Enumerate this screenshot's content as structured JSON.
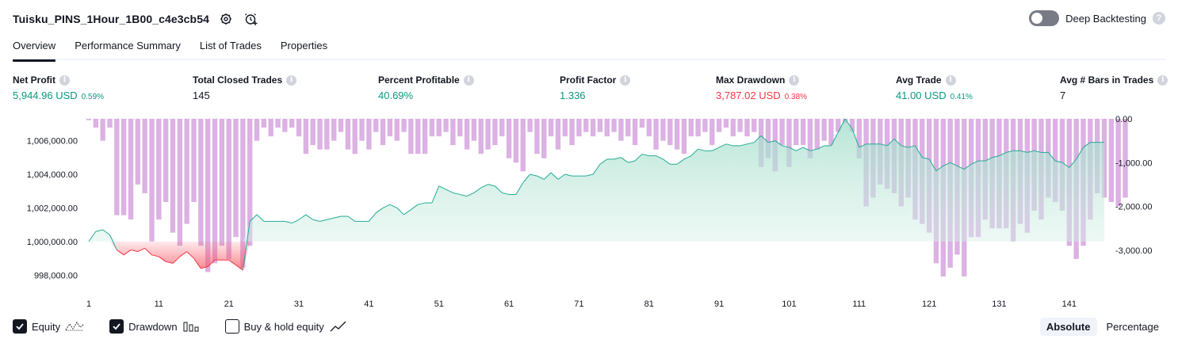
{
  "header": {
    "strategy_name": "Tuisku_PINS_1Hour_1B00_c4e3cb54",
    "settings_icon": "gear-icon",
    "alert_icon": "alarm-clock-add-icon",
    "deep_backtesting_label": "Deep Backtesting",
    "deep_backtesting_enabled": false
  },
  "tabs": [
    {
      "label": "Overview",
      "active": true
    },
    {
      "label": "Performance Summary",
      "active": false
    },
    {
      "label": "List of Trades",
      "active": false
    },
    {
      "label": "Properties",
      "active": false
    }
  ],
  "metrics": [
    {
      "label": "Net Profit",
      "value": "5,944.96 USD",
      "pct": "0.59%",
      "tone": "pos"
    },
    {
      "label": "Total Closed Trades",
      "value": "145",
      "pct": "",
      "tone": "neutral"
    },
    {
      "label": "Percent Profitable",
      "value": "40.69%",
      "pct": "",
      "tone": "pos"
    },
    {
      "label": "Profit Factor",
      "value": "1.336",
      "pct": "",
      "tone": "pos"
    },
    {
      "label": "Max Drawdown",
      "value": "3,787.02 USD",
      "pct": "0.38%",
      "tone": "neg"
    },
    {
      "label": "Avg Trade",
      "value": "41.00 USD",
      "pct": "0.41%",
      "tone": "pos"
    },
    {
      "label": "Avg # Bars in Trades",
      "value": "7",
      "pct": "",
      "tone": "neutral"
    }
  ],
  "legend": {
    "equity_label": "Equity",
    "equity_checked": true,
    "drawdown_label": "Drawdown",
    "drawdown_checked": true,
    "buyhold_label": "Buy & hold equity",
    "buyhold_checked": false
  },
  "mode": {
    "absolute_label": "Absolute",
    "percentage_label": "Percentage",
    "selected": "Absolute"
  },
  "colors": {
    "equity_line": "#22ab94",
    "equity_fill_top": "#9fdcc9",
    "equity_loss_line": "#f23645",
    "equity_loss_fill": "#f7525f",
    "drawdown_bar": "#ce93d8",
    "positive": "#089981",
    "negative": "#f23645"
  },
  "chart_data": {
    "type": "line",
    "x_ticks": [
      "1",
      "11",
      "21",
      "31",
      "41",
      "51",
      "61",
      "71",
      "81",
      "91",
      "101",
      "111",
      "121",
      "131",
      "141"
    ],
    "left_axis": {
      "ticks": [
        "998,000.00",
        "1,000,000.00",
        "1,002,000.00",
        "1,004,000.00",
        "1,006,000.00"
      ],
      "range": [
        997400,
        1007300
      ]
    },
    "right_axis": {
      "ticks": [
        "0.00",
        "-1,000.00",
        "-2,000.00",
        "-3,000.00"
      ],
      "range": [
        -3800,
        0
      ]
    },
    "baseline": 1000000,
    "series": [
      {
        "name": "Equity",
        "values": [
          1000000,
          1000600,
          1000700,
          1000400,
          999500,
          999200,
          999500,
          999400,
          999600,
          999200,
          999100,
          998800,
          998700,
          999100,
          999400,
          999000,
          998400,
          998500,
          998900,
          998900,
          998900,
          998600,
          998300,
          1001200,
          1001600,
          1001200,
          1001200,
          1001200,
          1001200,
          1001100,
          1001300,
          1001600,
          1001300,
          1001200,
          1001300,
          1001400,
          1001500,
          1001500,
          1001200,
          1001200,
          1001200,
          1001700,
          1002000,
          1002200,
          1002000,
          1001600,
          1001900,
          1002200,
          1002300,
          1002300,
          1003300,
          1003100,
          1002900,
          1002800,
          1002700,
          1002900,
          1003200,
          1003400,
          1003300,
          1002900,
          1002800,
          1002800,
          1003500,
          1004000,
          1003900,
          1003700,
          1004100,
          1003700,
          1004000,
          1003900,
          1003900,
          1003900,
          1004000,
          1004600,
          1004900,
          1004900,
          1005000,
          1004700,
          1004800,
          1005200,
          1005100,
          1005100,
          1004900,
          1004600,
          1004600,
          1004900,
          1005100,
          1005500,
          1005400,
          1005400,
          1005600,
          1005800,
          1005700,
          1005700,
          1005800,
          1005900,
          1006300,
          1005900,
          1006000,
          1005700,
          1005600,
          1005400,
          1005600,
          1005400,
          1005500,
          1005700,
          1005700,
          1006500,
          1007300,
          1006700,
          1005600,
          1005800,
          1005800,
          1005800,
          1005700,
          1006100,
          1005700,
          1005600,
          1005700,
          1005000,
          1004900,
          1004200,
          1004500,
          1004700,
          1004500,
          1004300,
          1004600,
          1004800,
          1004800,
          1005000,
          1005100,
          1005300,
          1005400,
          1005400,
          1005300,
          1005400,
          1005300,
          1005300,
          1004800,
          1004700,
          1004400,
          1004900,
          1005600,
          1005900,
          1005900,
          1005900
        ]
      },
      {
        "name": "Drawdown",
        "values": [
          -30,
          -200,
          -500,
          -200,
          -2200,
          -2200,
          -2300,
          -1500,
          -1700,
          -2800,
          -2300,
          -1900,
          -2600,
          -2900,
          -2400,
          -1900,
          -2900,
          -3500,
          -3300,
          -2900,
          -3200,
          -2700,
          -3400,
          -2900,
          -500,
          -200,
          -400,
          -200,
          -300,
          -200,
          -400,
          -800,
          -600,
          -700,
          -700,
          -500,
          -300,
          -700,
          -800,
          -500,
          -700,
          -300,
          -600,
          -400,
          -500,
          -300,
          -800,
          -800,
          -800,
          -400,
          -400,
          -300,
          -600,
          -400,
          -700,
          -500,
          -800,
          -700,
          -600,
          -400,
          -900,
          -1000,
          -1200,
          -300,
          -800,
          -900,
          -400,
          -700,
          -400,
          -600,
          -400,
          -300,
          -400,
          -300,
          -400,
          -300,
          -500,
          -400,
          -600,
          -200,
          -400,
          -700,
          -500,
          -600,
          -700,
          -800,
          -400,
          -400,
          -300,
          -600,
          -300,
          -200,
          -400,
          -300,
          -400,
          -300,
          -1100,
          -900,
          -1200,
          -600,
          -1100,
          -600,
          -600,
          -900,
          -700,
          -500,
          -600,
          -300,
          -100,
          -300,
          -900,
          -2000,
          -1800,
          -1500,
          -1600,
          -1700,
          -2000,
          -1800,
          -2300,
          -2400,
          -2600,
          -3300,
          -3600,
          -3400,
          -3100,
          -3600,
          -2700,
          -2700,
          -2300,
          -2500,
          -2500,
          -2500,
          -2800,
          -2400,
          -2600,
          -2100,
          -2300,
          -1800,
          -1900,
          -2100,
          -2900,
          -3200,
          -2900,
          -2300,
          -1700,
          -1800,
          -1900,
          -2000,
          -1800
        ]
      }
    ]
  }
}
